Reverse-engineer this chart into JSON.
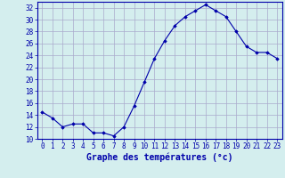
{
  "hours": [
    0,
    1,
    2,
    3,
    4,
    5,
    6,
    7,
    8,
    9,
    10,
    11,
    12,
    13,
    14,
    15,
    16,
    17,
    18,
    19,
    20,
    21,
    22,
    23
  ],
  "temperatures": [
    14.5,
    13.5,
    12.0,
    12.5,
    12.5,
    11.0,
    11.0,
    10.5,
    12.0,
    15.5,
    19.5,
    23.5,
    26.5,
    29.0,
    30.5,
    31.5,
    32.5,
    31.5,
    30.5,
    28.0,
    25.5,
    24.5,
    24.5,
    23.5
  ],
  "xlim": [
    -0.5,
    23.5
  ],
  "ylim": [
    10,
    33
  ],
  "yticks": [
    10,
    12,
    14,
    16,
    18,
    20,
    22,
    24,
    26,
    28,
    30,
    32
  ],
  "xticks": [
    0,
    1,
    2,
    3,
    4,
    5,
    6,
    7,
    8,
    9,
    10,
    11,
    12,
    13,
    14,
    15,
    16,
    17,
    18,
    19,
    20,
    21,
    22,
    23
  ],
  "xlabel": "Graphe des températures (°c)",
  "line_color": "#0000aa",
  "marker": "D",
  "marker_size": 1.8,
  "bg_color": "#d4eeee",
  "grid_color": "#aaaacc",
  "spine_color": "#0000aa",
  "tick_color": "#0000aa",
  "label_color": "#0000aa",
  "font_size": 5.5,
  "xlabel_fontsize": 7.0
}
